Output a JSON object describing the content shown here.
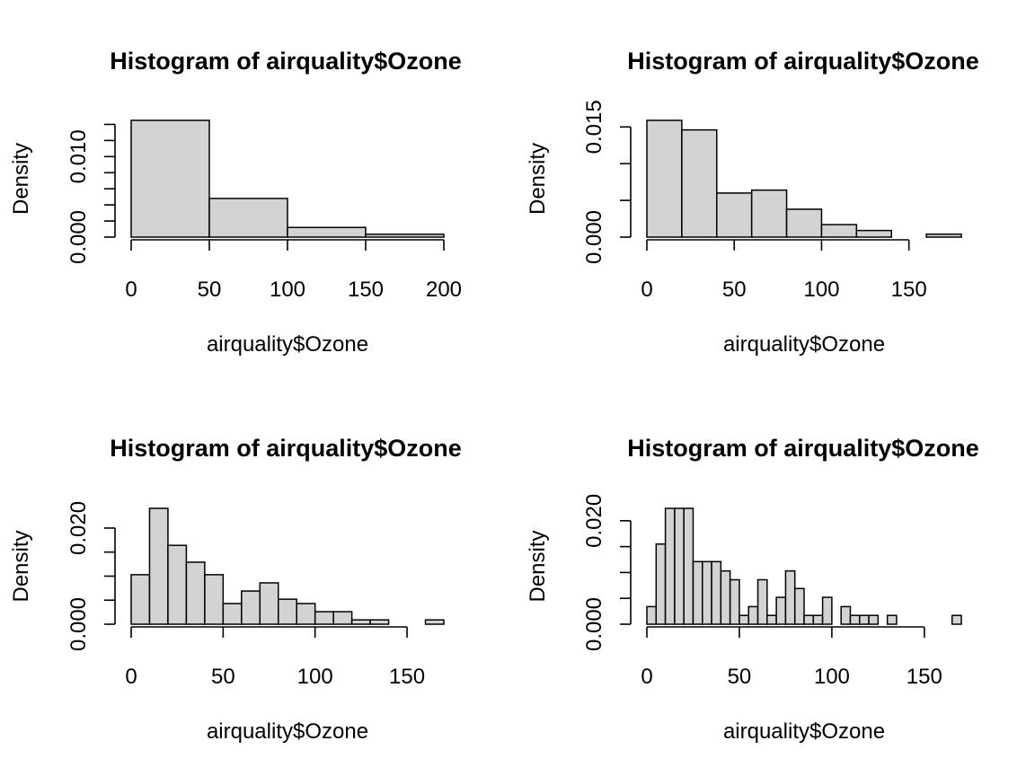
{
  "colors": {
    "bar_fill": "#d3d3d3",
    "bar_stroke": "#000000",
    "background": "#ffffff"
  },
  "chart_data": [
    {
      "type": "bar",
      "title": "Histogram of airquality$Ozone",
      "xlabel": "airquality$Ozone",
      "ylabel": "Density",
      "breaks": [
        0,
        50,
        100,
        150,
        200
      ],
      "density": [
        0.0145,
        0.0048,
        0.0012,
        0.00035
      ],
      "xlim": [
        0,
        200
      ],
      "ylim": [
        0,
        0.0145
      ],
      "x_ticks": [
        0,
        50,
        100,
        150,
        200
      ],
      "x_tick_labels": [
        "0",
        "50",
        "100",
        "150",
        "200"
      ],
      "y_ticks": [
        0,
        0.002,
        0.004,
        0.006,
        0.008,
        0.01,
        0.012,
        0.014
      ],
      "y_tick_labels": [
        "0.000",
        "",
        "",
        "",
        "",
        "0.010",
        "",
        ""
      ]
    },
    {
      "type": "bar",
      "title": "Histogram of airquality$Ozone",
      "xlabel": "airquality$Ozone",
      "ylabel": "Density",
      "breaks": [
        0,
        20,
        40,
        60,
        80,
        100,
        120,
        140,
        160,
        180
      ],
      "density": [
        0.0159,
        0.0146,
        0.006,
        0.0064,
        0.0038,
        0.0017,
        0.0009,
        0,
        0.0004
      ],
      "xlim": [
        0,
        180
      ],
      "ylim": [
        0,
        0.0159
      ],
      "x_ticks": [
        0,
        50,
        100,
        150
      ],
      "x_tick_labels": [
        "0",
        "50",
        "100",
        "150"
      ],
      "y_ticks": [
        0,
        0.005,
        0.01,
        0.015
      ],
      "y_tick_labels": [
        "0.000",
        "",
        "",
        "0.015"
      ]
    },
    {
      "type": "bar",
      "title": "Histogram of airquality$Ozone",
      "xlabel": "airquality$Ozone",
      "ylabel": "Density",
      "breaks": [
        0,
        10,
        20,
        30,
        40,
        50,
        60,
        70,
        80,
        90,
        100,
        110,
        120,
        130,
        140,
        150,
        160,
        170
      ],
      "density": [
        0.0103,
        0.0241,
        0.0164,
        0.0129,
        0.0103,
        0.0043,
        0.0069,
        0.0086,
        0.0052,
        0.0043,
        0.0026,
        0.0026,
        0.0009,
        0.0009,
        0,
        0,
        0.0009
      ],
      "xlim": [
        0,
        170
      ],
      "ylim": [
        0,
        0.0241
      ],
      "x_ticks": [
        0,
        50,
        100,
        150
      ],
      "x_tick_labels": [
        "0",
        "50",
        "100",
        "150"
      ],
      "y_ticks": [
        0,
        0.005,
        0.01,
        0.015,
        0.02
      ],
      "y_tick_labels": [
        "0.000",
        "",
        "",
        "",
        "0.020"
      ]
    },
    {
      "type": "bar",
      "title": "Histogram of airquality$Ozone",
      "xlabel": "airquality$Ozone",
      "ylabel": "Density",
      "breaks": [
        0,
        5,
        10,
        15,
        20,
        25,
        30,
        35,
        40,
        45,
        50,
        55,
        60,
        65,
        70,
        75,
        80,
        85,
        90,
        95,
        100,
        105,
        110,
        115,
        120,
        125,
        130,
        135,
        140,
        145,
        150,
        155,
        160,
        165,
        170
      ],
      "density": [
        0.0034,
        0.0155,
        0.0224,
        0.0224,
        0.0224,
        0.0121,
        0.0121,
        0.0121,
        0.0103,
        0.0086,
        0.0017,
        0.0034,
        0.0086,
        0.0017,
        0.0052,
        0.0103,
        0.0069,
        0.0017,
        0.0017,
        0.0052,
        0.0,
        0.0034,
        0.0017,
        0.0017,
        0.0017,
        0,
        0.0017,
        0,
        0,
        0,
        0,
        0,
        0,
        0.0017
      ],
      "xlim": [
        0,
        170
      ],
      "ylim": [
        0,
        0.0224
      ],
      "x_ticks": [
        0,
        50,
        100,
        150
      ],
      "x_tick_labels": [
        "0",
        "50",
        "100",
        "150"
      ],
      "y_ticks": [
        0,
        0.005,
        0.01,
        0.015,
        0.02
      ],
      "y_tick_labels": [
        "0.000",
        "",
        "",
        "",
        "0.020"
      ]
    }
  ]
}
